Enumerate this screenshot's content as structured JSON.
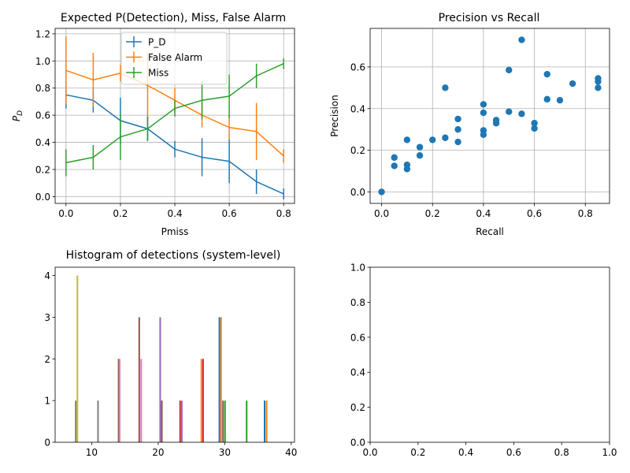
{
  "palette": [
    "#1f77b4",
    "#ff7f0e",
    "#2ca02c",
    "#d62728",
    "#9467bd",
    "#8c564b",
    "#e377c2",
    "#7f7f7f",
    "#bcbd22",
    "#17becf"
  ],
  "chart_data": [
    {
      "type": "line",
      "title": "Expected P(Detection), Miss, False Alarm",
      "xlabel": "Pmiss",
      "ylabel": "P_D",
      "xlim": [
        -0.04,
        0.84
      ],
      "ylim": [
        -0.05,
        1.24
      ],
      "xticks": [
        0.0,
        0.2,
        0.4,
        0.6,
        0.8
      ],
      "xtick_labels": [
        "0.0",
        "0.2",
        "0.4",
        "0.6",
        "0.8"
      ],
      "yticks": [
        0.0,
        0.2,
        0.4,
        0.6,
        0.8,
        1.0,
        1.2
      ],
      "ytick_labels": [
        "0.0",
        "0.2",
        "0.4",
        "0.6",
        "0.8",
        "1.0",
        "1.2"
      ],
      "grid": true,
      "legend": "upper center",
      "x": [
        0.0,
        0.1,
        0.2,
        0.3,
        0.4,
        0.5,
        0.6,
        0.7,
        0.8
      ],
      "series": [
        {
          "name": "P_D",
          "color": "#1f77b4",
          "values": [
            0.75,
            0.71,
            0.56,
            0.5,
            0.35,
            0.29,
            0.26,
            0.11,
            0.02
          ],
          "error": [
            0.1,
            0.09,
            0.17,
            0.09,
            0.06,
            0.14,
            0.16,
            0.09,
            0.04
          ]
        },
        {
          "name": "False Alarm",
          "color": "#ff7f0e",
          "values": [
            0.93,
            0.86,
            0.91,
            0.82,
            0.71,
            0.6,
            0.51,
            0.48,
            0.3
          ],
          "error": [
            0.25,
            0.2,
            0.06,
            0.25,
            0.09,
            0.09,
            0.09,
            0.21,
            0.05
          ]
        },
        {
          "name": "Miss",
          "color": "#2ca02c",
          "values": [
            0.25,
            0.29,
            0.44,
            0.5,
            0.65,
            0.71,
            0.74,
            0.89,
            0.98
          ],
          "error": [
            0.1,
            0.09,
            0.17,
            0.09,
            0.06,
            0.14,
            0.16,
            0.09,
            0.04
          ]
        }
      ]
    },
    {
      "type": "scatter",
      "title": "Precision vs Recall",
      "xlabel": "Recall",
      "ylabel": "Precision",
      "xlim": [
        -0.045,
        0.895
      ],
      "ylim": [
        -0.055,
        0.785
      ],
      "xticks": [
        0.0,
        0.2,
        0.4,
        0.6,
        0.8
      ],
      "xtick_labels": [
        "0.0",
        "0.2",
        "0.4",
        "0.6",
        "0.8"
      ],
      "yticks": [
        0.0,
        0.2,
        0.4,
        0.6
      ],
      "ytick_labels": [
        "0.0",
        "0.2",
        "0.4",
        "0.6"
      ],
      "grid": true,
      "color": "#1f77b4",
      "points": [
        [
          0.0,
          0.0
        ],
        [
          0.05,
          0.165
        ],
        [
          0.05,
          0.125
        ],
        [
          0.1,
          0.25
        ],
        [
          0.1,
          0.13
        ],
        [
          0.1,
          0.11
        ],
        [
          0.15,
          0.215
        ],
        [
          0.15,
          0.175
        ],
        [
          0.2,
          0.25
        ],
        [
          0.25,
          0.5
        ],
        [
          0.25,
          0.26
        ],
        [
          0.3,
          0.35
        ],
        [
          0.3,
          0.3
        ],
        [
          0.3,
          0.24
        ],
        [
          0.4,
          0.42
        ],
        [
          0.4,
          0.38
        ],
        [
          0.4,
          0.295
        ],
        [
          0.4,
          0.275
        ],
        [
          0.45,
          0.345
        ],
        [
          0.45,
          0.33
        ],
        [
          0.5,
          0.585
        ],
        [
          0.5,
          0.385
        ],
        [
          0.55,
          0.73
        ],
        [
          0.55,
          0.375
        ],
        [
          0.6,
          0.33
        ],
        [
          0.6,
          0.305
        ],
        [
          0.65,
          0.565
        ],
        [
          0.65,
          0.445
        ],
        [
          0.7,
          0.44
        ],
        [
          0.75,
          0.52
        ],
        [
          0.85,
          0.545
        ],
        [
          0.85,
          0.53
        ],
        [
          0.85,
          0.5
        ]
      ]
    },
    {
      "type": "bar",
      "title": "Histogram of detections (system-level)",
      "xlabel": "",
      "ylabel": "",
      "xlim": [
        4.5,
        40.5
      ],
      "ylim": [
        0,
        4.2
      ],
      "xticks": [
        10,
        20,
        30,
        40
      ],
      "xtick_labels": [
        "10",
        "20",
        "30",
        "40"
      ],
      "yticks": [
        0,
        1,
        2,
        3,
        4
      ],
      "ytick_labels": [
        "0",
        "1",
        "2",
        "3",
        "4"
      ],
      "grid": false,
      "bar_width": 0.1,
      "bars": [
        {
          "x": 7.6,
          "height": 1,
          "color": "#7f7f7f"
        },
        {
          "x": 7.85,
          "height": 4,
          "color": "#bcbd22"
        },
        {
          "x": 10.95,
          "height": 1,
          "color": "#7f7f7f"
        },
        {
          "x": 14.05,
          "height": 2,
          "color": "#8c564b"
        },
        {
          "x": 14.2,
          "height": 2,
          "color": "#e377c2"
        },
        {
          "x": 17.15,
          "height": 3,
          "color": "#8c564b"
        },
        {
          "x": 17.45,
          "height": 2,
          "color": "#e377c2"
        },
        {
          "x": 20.3,
          "height": 3,
          "color": "#9467bd"
        },
        {
          "x": 20.55,
          "height": 1,
          "color": "#8c564b"
        },
        {
          "x": 23.3,
          "height": 1,
          "color": "#d62728"
        },
        {
          "x": 23.55,
          "height": 1,
          "color": "#9467bd"
        },
        {
          "x": 26.5,
          "height": 2,
          "color": "#ff7f0e"
        },
        {
          "x": 26.75,
          "height": 2,
          "color": "#d62728"
        },
        {
          "x": 29.2,
          "height": 3,
          "color": "#1f77b4"
        },
        {
          "x": 29.45,
          "height": 3,
          "color": "#ff7f0e"
        },
        {
          "x": 29.75,
          "height": 1,
          "color": "#8c564b"
        },
        {
          "x": 30.05,
          "height": 1,
          "color": "#2ca02c"
        },
        {
          "x": 33.3,
          "height": 1,
          "color": "#2ca02c"
        },
        {
          "x": 36.0,
          "height": 1,
          "color": "#1f77b4"
        },
        {
          "x": 36.3,
          "height": 1,
          "color": "#ff7f0e"
        }
      ]
    },
    {
      "type": "scatter",
      "title": "",
      "xlabel": "",
      "ylabel": "",
      "xlim": [
        0.0,
        1.0
      ],
      "ylim": [
        0.0,
        1.0
      ],
      "xticks": [
        0.0,
        0.2,
        0.4,
        0.6,
        0.8,
        1.0
      ],
      "xtick_labels": [
        "0.0",
        "0.2",
        "0.4",
        "0.6",
        "0.8",
        "1.0"
      ],
      "yticks": [
        0.0,
        0.2,
        0.4,
        0.6,
        0.8,
        1.0
      ],
      "ytick_labels": [
        "0.0",
        "0.2",
        "0.4",
        "0.6",
        "0.8",
        "1.0"
      ],
      "grid": false,
      "points": []
    }
  ]
}
